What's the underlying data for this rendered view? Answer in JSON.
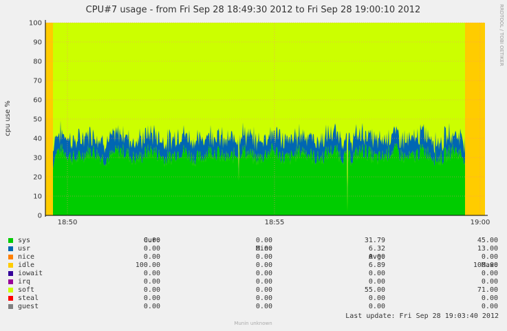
{
  "chart_data": {
    "type": "area",
    "title": "CPU#7 usage - from Fri Sep 28 18:49:30 2012 to Fri Sep 28 19:00:10 2012",
    "ylabel": "cpu use %",
    "xlabel": "",
    "ylim": [
      0,
      100
    ],
    "yticks": [
      "0",
      "10",
      "20",
      "30",
      "40",
      "50",
      "60",
      "70",
      "80",
      "90",
      "100"
    ],
    "xticks": [
      "18:50",
      "18:55",
      "19:00"
    ],
    "grid": true,
    "stacked": true,
    "series": [
      {
        "name": "sys",
        "color": "#00cc00",
        "typical": 31.79,
        "noise_max": 45
      },
      {
        "name": "usr",
        "color": "#0066b3",
        "typical": 6.32,
        "noise_max": 13
      },
      {
        "name": "soft",
        "color": "#ccff00",
        "typical": 55.0
      },
      {
        "name": "idle",
        "color": "#ffcc00",
        "typical": 6.89
      }
    ]
  },
  "side_label": "RRDTOOL / TOBI OETIKER",
  "footer": "Munin unknown",
  "legend": {
    "headers": [
      "Cur:",
      "Min:",
      "Avg:",
      "Max:"
    ],
    "rows": [
      {
        "name": "sys",
        "color": "#00cc00",
        "cur": "0.00",
        "min": "0.00",
        "avg": "31.79",
        "max": "45.00"
      },
      {
        "name": "usr",
        "color": "#0066b3",
        "cur": "0.00",
        "min": "0.00",
        "avg": "6.32",
        "max": "13.00"
      },
      {
        "name": "nice",
        "color": "#ff8000",
        "cur": "0.00",
        "min": "0.00",
        "avg": "0.00",
        "max": "0.00"
      },
      {
        "name": "idle",
        "color": "#ffcc00",
        "cur": "100.00",
        "min": "0.00",
        "avg": "6.89",
        "max": "100.00"
      },
      {
        "name": "iowait",
        "color": "#330099",
        "cur": "0.00",
        "min": "0.00",
        "avg": "0.00",
        "max": "0.00"
      },
      {
        "name": "irq",
        "color": "#990099",
        "cur": "0.00",
        "min": "0.00",
        "avg": "0.00",
        "max": "0.00"
      },
      {
        "name": "soft",
        "color": "#ccff00",
        "cur": "0.00",
        "min": "0.00",
        "avg": "55.00",
        "max": "71.00"
      },
      {
        "name": "steal",
        "color": "#ff0000",
        "cur": "0.00",
        "min": "0.00",
        "avg": "0.00",
        "max": "0.00"
      },
      {
        "name": "guest",
        "color": "#808080",
        "cur": "0.00",
        "min": "0.00",
        "avg": "0.00",
        "max": "0.00"
      }
    ],
    "last_update": "Last update: Fri Sep 28 19:03:40 2012"
  }
}
